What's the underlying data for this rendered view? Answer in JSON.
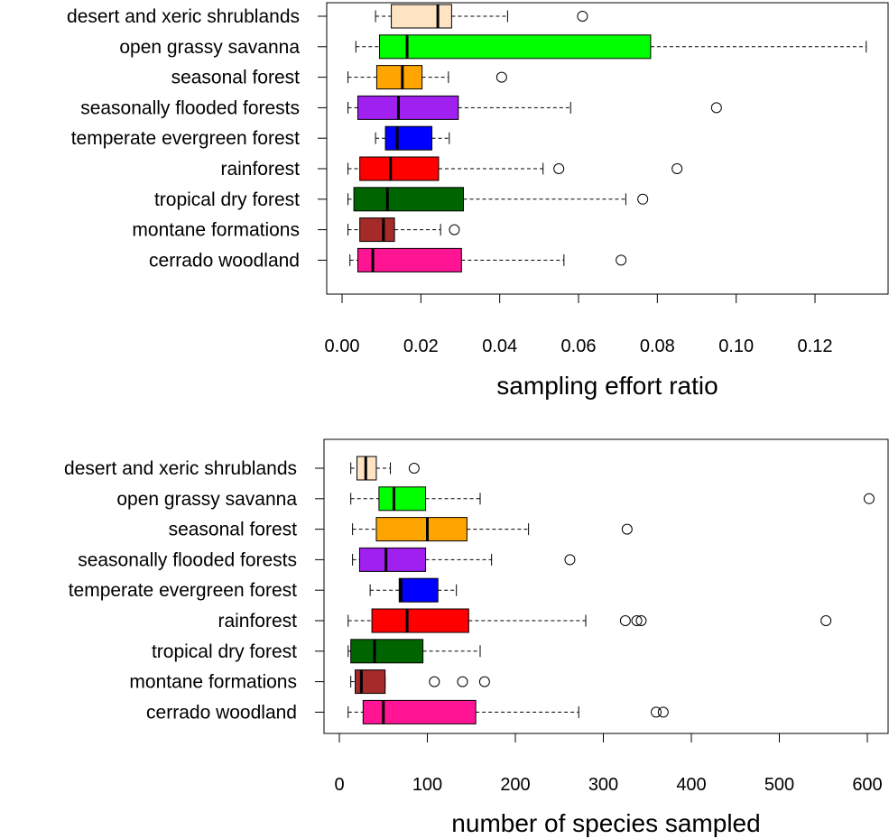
{
  "chart_data": [
    {
      "type": "boxplot",
      "xlabel": "sampling effort ratio",
      "xlim": [
        0,
        0.135
      ],
      "xticks": [
        0.0,
        0.02,
        0.04,
        0.06,
        0.08,
        0.1,
        0.12
      ],
      "xtick_labels": [
        "0.00",
        "0.02",
        "0.04",
        "0.06",
        "0.08",
        "0.10",
        "0.12"
      ],
      "categories": [
        {
          "name": "desert and xeric shrublands",
          "color": "#FFE4C4",
          "whisker_low": 0.0085,
          "q1": 0.0125,
          "median": 0.0243,
          "q3": 0.0278,
          "whisker_high": 0.042,
          "outliers": [
            0.061
          ]
        },
        {
          "name": "open grassy savanna",
          "color": "#00FF00",
          "whisker_low": 0.0035,
          "q1": 0.0095,
          "median": 0.0165,
          "q3": 0.0783,
          "whisker_high": 0.133,
          "outliers": []
        },
        {
          "name": "seasonal forest",
          "color": "#FFA500",
          "whisker_low": 0.0015,
          "q1": 0.0088,
          "median": 0.0153,
          "q3": 0.0203,
          "whisker_high": 0.027,
          "outliers": [
            0.0405
          ]
        },
        {
          "name": "seasonally flooded forests",
          "color": "#A020F0",
          "whisker_low": 0.0015,
          "q1": 0.004,
          "median": 0.0143,
          "q3": 0.0295,
          "whisker_high": 0.058,
          "outliers": [
            0.095
          ]
        },
        {
          "name": "temperate evergreen forest",
          "color": "#0000FF",
          "whisker_low": 0.0085,
          "q1": 0.011,
          "median": 0.014,
          "q3": 0.0228,
          "whisker_high": 0.0272,
          "outliers": []
        },
        {
          "name": "rainforest",
          "color": "#FF0000",
          "whisker_low": 0.0015,
          "q1": 0.0045,
          "median": 0.0123,
          "q3": 0.0245,
          "whisker_high": 0.051,
          "outliers": [
            0.055,
            0.085
          ]
        },
        {
          "name": "tropical dry forest",
          "color": "#006400",
          "whisker_low": 0.0015,
          "q1": 0.003,
          "median": 0.0115,
          "q3": 0.0308,
          "whisker_high": 0.072,
          "outliers": [
            0.0763
          ]
        },
        {
          "name": "montane formations",
          "color": "#A52A2A",
          "whisker_low": 0.0015,
          "q1": 0.0045,
          "median": 0.0105,
          "q3": 0.0133,
          "whisker_high": 0.025,
          "outliers": [
            0.0285
          ]
        },
        {
          "name": "cerrado woodland",
          "color": "#FF1493",
          "whisker_low": 0.002,
          "q1": 0.004,
          "median": 0.0078,
          "q3": 0.0303,
          "whisker_high": 0.0563,
          "outliers": [
            0.0708
          ]
        }
      ]
    },
    {
      "type": "boxplot",
      "xlabel": "number of species sampled",
      "xlim": [
        0,
        620
      ],
      "xticks": [
        0,
        100,
        200,
        300,
        400,
        500,
        600
      ],
      "xtick_labels": [
        "0",
        "100",
        "200",
        "300",
        "400",
        "500",
        "600"
      ],
      "categories": [
        {
          "name": "desert and xeric shrublands",
          "color": "#FFE4C4",
          "whisker_low": 13,
          "q1": 20,
          "median": 30,
          "q3": 42,
          "whisker_high": 58,
          "outliers": [
            85
          ]
        },
        {
          "name": "open grassy savanna",
          "color": "#00FF00",
          "whisker_low": 13,
          "q1": 45,
          "median": 62,
          "q3": 98,
          "whisker_high": 160,
          "outliers": [
            602
          ]
        },
        {
          "name": "seasonal forest",
          "color": "#FFA500",
          "whisker_low": 15,
          "q1": 42,
          "median": 100,
          "q3": 145,
          "whisker_high": 215,
          "outliers": [
            327
          ]
        },
        {
          "name": "seasonally flooded forests",
          "color": "#A020F0",
          "whisker_low": 15,
          "q1": 23,
          "median": 53,
          "q3": 98,
          "whisker_high": 173,
          "outliers": [
            262
          ]
        },
        {
          "name": "temperate evergreen forest",
          "color": "#0000FF",
          "whisker_low": 35,
          "q1": 68,
          "median": 70,
          "q3": 112,
          "whisker_high": 133,
          "outliers": []
        },
        {
          "name": "rainforest",
          "color": "#FF0000",
          "whisker_low": 10,
          "q1": 37,
          "median": 77,
          "q3": 147,
          "whisker_high": 280,
          "outliers": [
            325,
            338,
            343,
            553
          ]
        },
        {
          "name": "tropical dry forest",
          "color": "#006400",
          "whisker_low": 10,
          "q1": 13,
          "median": 40,
          "q3": 95,
          "whisker_high": 160,
          "outliers": []
        },
        {
          "name": "montane formations",
          "color": "#A52A2A",
          "whisker_low": 13,
          "q1": 18,
          "median": 25,
          "q3": 52,
          "whisker_high": 52,
          "outliers": [
            108,
            140,
            165
          ]
        },
        {
          "name": "cerrado woodland",
          "color": "#FF1493",
          "whisker_low": 10,
          "q1": 27,
          "median": 50,
          "q3": 155,
          "whisker_high": 272,
          "outliers": [
            360,
            368
          ]
        }
      ]
    }
  ]
}
